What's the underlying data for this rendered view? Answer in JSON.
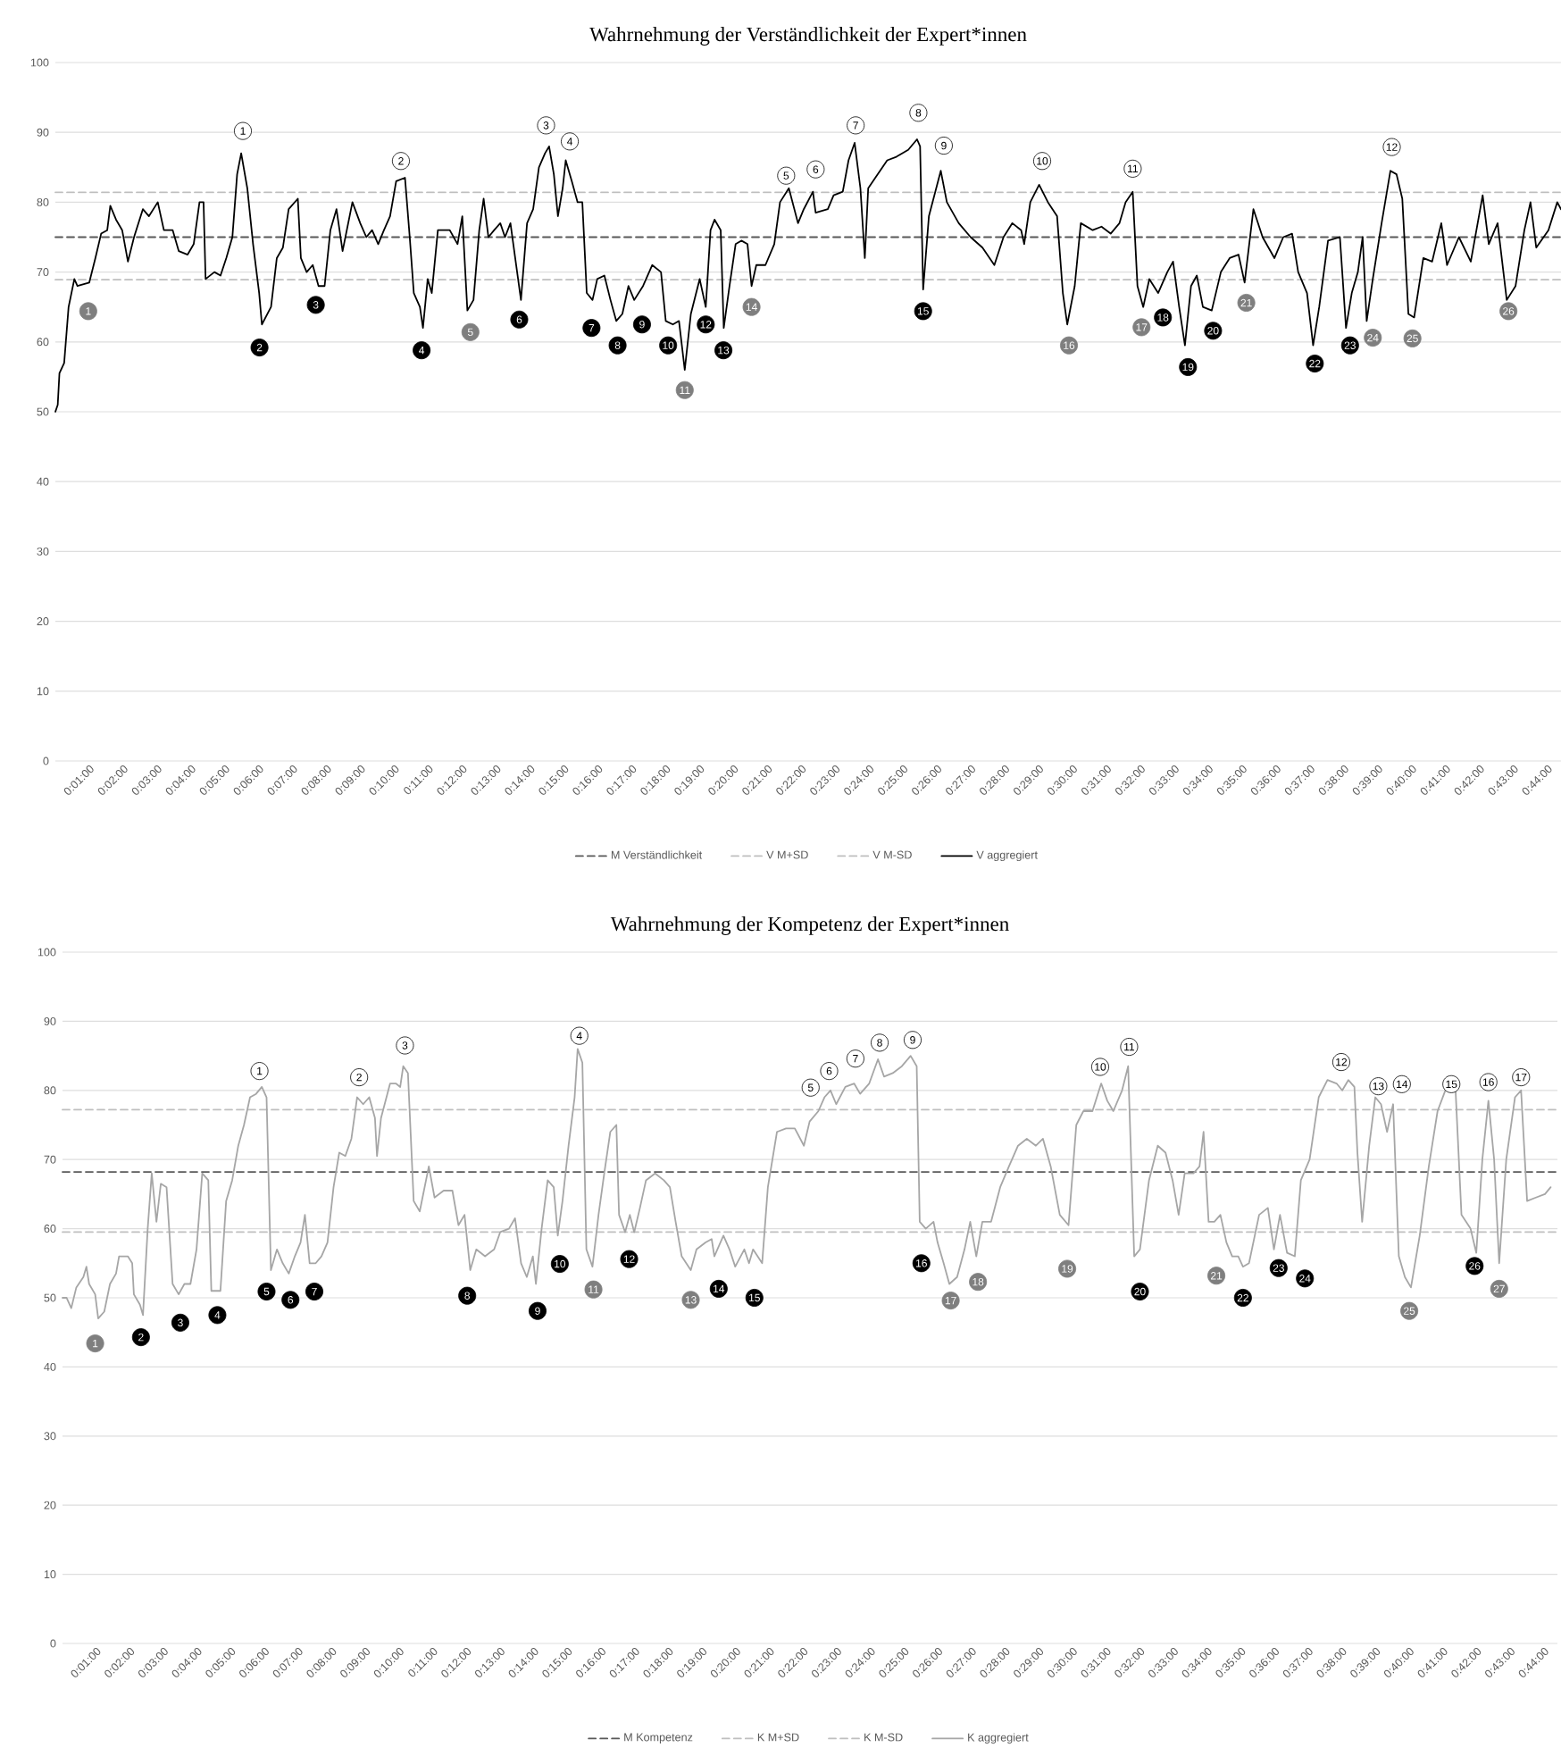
{
  "chart_data": [
    {
      "type": "line",
      "title": "Wahrnehmung der Verständlichkeit der Expert*innen",
      "xlim": [
        0,
        44.4
      ],
      "ylim": [
        0,
        100
      ],
      "yticks": [
        0,
        10,
        20,
        30,
        40,
        50,
        60,
        70,
        80,
        90,
        100
      ],
      "grid": "y",
      "legend": "bottom",
      "marker": "none",
      "xticks": [
        {
          "value": 1,
          "label": "0:01:00"
        },
        {
          "value": 2,
          "label": "0:02:00"
        },
        {
          "value": 3,
          "label": "0:03:00"
        },
        {
          "value": 4,
          "label": "0:04:00"
        },
        {
          "value": 5,
          "label": "0:05:00"
        },
        {
          "value": 6,
          "label": "0:06:00"
        },
        {
          "value": 7,
          "label": "0:07:00"
        },
        {
          "value": 8,
          "label": "0:08:00"
        },
        {
          "value": 9,
          "label": "0:09:00"
        },
        {
          "value": 10,
          "label": "0:10:00"
        },
        {
          "value": 11,
          "label": "0:11:00"
        },
        {
          "value": 12,
          "label": "0:12:00"
        },
        {
          "value": 13,
          "label": "0:13:00"
        },
        {
          "value": 14,
          "label": "0:14:00"
        },
        {
          "value": 15,
          "label": "0:15:00"
        },
        {
          "value": 16,
          "label": "0:16:00"
        },
        {
          "value": 17,
          "label": "0:17:00"
        },
        {
          "value": 18,
          "label": "0:18:00"
        },
        {
          "value": 19,
          "label": "0:19:00"
        },
        {
          "value": 20,
          "label": "0:20:00"
        },
        {
          "value": 21,
          "label": "0:21:00"
        },
        {
          "value": 22,
          "label": "0:22:00"
        },
        {
          "value": 23,
          "label": "0:23:00"
        },
        {
          "value": 24,
          "label": "0:24:00"
        },
        {
          "value": 25,
          "label": "0:25:00"
        },
        {
          "value": 26,
          "label": "0:26:00"
        },
        {
          "value": 27,
          "label": "0:27:00"
        },
        {
          "value": 28,
          "label": "0:28:00"
        },
        {
          "value": 29,
          "label": "0:29:00"
        },
        {
          "value": 30,
          "label": "0:30:00"
        },
        {
          "value": 31,
          "label": "0:31:00"
        },
        {
          "value": 32,
          "label": "0:32:00"
        },
        {
          "value": 33,
          "label": "0:33:00"
        },
        {
          "value": 34,
          "label": "0:34:00"
        },
        {
          "value": 35,
          "label": "0:35:00"
        },
        {
          "value": 36,
          "label": "0:36:00"
        },
        {
          "value": 37,
          "label": "0:37:00"
        },
        {
          "value": 38,
          "label": "0:38:00"
        },
        {
          "value": 39,
          "label": "0:39:00"
        },
        {
          "value": 40,
          "label": "0:40:00"
        },
        {
          "value": 41,
          "label": "0:41:00"
        },
        {
          "value": 42,
          "label": "0:42:00"
        },
        {
          "value": 43,
          "label": "0:43:00"
        },
        {
          "value": 44,
          "label": "0:44:00"
        }
      ],
      "series": [
        {
          "name": "M Verständlichkeit",
          "color": "#595959",
          "line_style": "dashed",
          "x": [
            0,
            44.4
          ],
          "values": [
            75,
            75
          ]
        },
        {
          "name": "V M+SD",
          "color": "#bfbfbf",
          "line_style": "dashed",
          "x": [
            0,
            44.4
          ],
          "values": [
            81.4,
            81.4
          ]
        },
        {
          "name": "V M-SD",
          "color": "#bfbfbf",
          "line_style": "dashed",
          "x": [
            0,
            44.4
          ],
          "values": [
            68.9,
            68.9
          ]
        },
        {
          "name": "V aggregiert",
          "color": "#000000",
          "line_style": "solid",
          "x": [
            0,
            0.07,
            0.12,
            0.26,
            0.39,
            0.56,
            0.65,
            1.0,
            1.18,
            1.35,
            1.53,
            1.62,
            1.79,
            1.97,
            2.14,
            2.32,
            2.58,
            2.76,
            3.02,
            3.2,
            3.46,
            3.64,
            3.9,
            4.08,
            4.25,
            4.37,
            4.43,
            4.69,
            4.87,
            5.04,
            5.22,
            5.36,
            5.48,
            5.66,
            5.83,
            6.01,
            6.09,
            6.36,
            6.53,
            6.71,
            6.88,
            7.15,
            7.24,
            7.41,
            7.59,
            7.76,
            7.94,
            8.11,
            8.29,
            8.47,
            8.76,
            8.99,
            9.17,
            9.34,
            9.52,
            9.69,
            9.87,
            10.05,
            10.31,
            10.45,
            10.57,
            10.75,
            10.84,
            10.98,
            11.1,
            11.28,
            11.63,
            11.86,
            12.0,
            12.15,
            12.33,
            12.5,
            12.63,
            12.77,
            12.94,
            13.12,
            13.26,
            13.42,
            13.56,
            13.73,
            13.91,
            14.09,
            14.26,
            14.44,
            14.56,
            14.7,
            14.82,
            14.96,
            15.05,
            15.23,
            15.4,
            15.54,
            15.67,
            15.84,
            15.98,
            16.19,
            16.37,
            16.54,
            16.72,
            16.9,
            17.07,
            17.33,
            17.6,
            17.86,
            18.0,
            18.21,
            18.39,
            18.56,
            18.74,
            19.0,
            19.18,
            19.32,
            19.44,
            19.62,
            19.71,
            19.88,
            20.06,
            20.23,
            20.41,
            20.53,
            20.67,
            20.94,
            21.2,
            21.37,
            21.63,
            21.9,
            22.07,
            22.34,
            22.42,
            22.78,
            22.95,
            23.22,
            23.39,
            23.57,
            23.74,
            23.87,
            23.97,
            24.18,
            24.53,
            24.8,
            25.15,
            25.41,
            25.5,
            25.59,
            25.76,
            26.11,
            26.29,
            26.64,
            26.99,
            27.34,
            27.69,
            27.96,
            28.22,
            28.48,
            28.57,
            28.75,
            29.01,
            29.27,
            29.54,
            29.71,
            29.84,
            30.06,
            30.24,
            30.59,
            30.85,
            31.12,
            31.38,
            31.56,
            31.77,
            31.91,
            32.08,
            32.26,
            32.52,
            32.79,
            32.96,
            33.14,
            33.31,
            33.49,
            33.66,
            33.84,
            34.1,
            34.37,
            34.63,
            34.89,
            35.07,
            35.33,
            35.6,
            35.95,
            36.21,
            36.47,
            36.65,
            36.91,
            37.09,
            37.27,
            37.53,
            37.88,
            38.06,
            38.23,
            38.41,
            38.55,
            38.67,
            38.85,
            39.11,
            39.37,
            39.55,
            39.72,
            39.9,
            40.07,
            40.34,
            40.6,
            40.87,
            41.04,
            41.39,
            41.74,
            42.09,
            42.27,
            42.53,
            42.8,
            43.06,
            43.32,
            43.5,
            43.67,
            44.03,
            44.29,
            44.4
          ],
          "values": [
            50,
            51,
            55.5,
            57,
            65,
            69,
            68,
            68.5,
            72,
            75.5,
            76,
            79.5,
            77.5,
            76,
            71.5,
            75,
            79,
            78,
            80,
            76,
            76,
            73,
            72.5,
            74,
            80,
            80,
            69,
            70,
            69.5,
            72,
            75,
            84,
            87,
            82,
            74,
            67,
            62.5,
            65,
            72,
            73.5,
            79,
            80.5,
            72,
            70,
            71,
            68,
            68,
            76,
            79,
            73,
            80,
            77,
            75,
            76,
            74,
            76,
            78,
            83,
            83.5,
            75,
            67,
            65,
            62,
            69,
            67,
            76,
            76,
            74,
            78,
            64.5,
            66,
            76,
            80.5,
            75,
            76,
            77,
            75,
            77,
            72,
            66,
            77,
            79,
            85,
            87,
            88,
            84,
            78,
            82,
            86,
            83,
            80,
            80,
            67,
            66,
            69,
            69.5,
            66,
            63,
            64,
            68,
            66,
            68,
            71,
            70,
            63,
            62.5,
            63,
            56,
            64,
            69,
            65,
            76,
            77.5,
            76,
            62,
            68,
            74,
            74.5,
            74,
            68,
            71,
            71,
            74,
            80,
            82,
            77,
            79,
            81.5,
            78.5,
            79,
            81,
            81.5,
            86,
            88.5,
            82,
            72,
            82,
            83.5,
            86,
            86.5,
            87.5,
            89,
            88,
            67.5,
            78,
            84.5,
            80,
            77,
            75,
            73.5,
            71,
            75,
            77,
            76,
            74,
            80,
            82.5,
            80,
            78,
            67,
            62.5,
            68,
            77,
            76,
            76.5,
            75.5,
            77,
            80,
            81.5,
            68,
            65,
            69,
            67,
            70,
            71.5,
            65,
            59.5,
            68,
            69.5,
            65,
            64.5,
            70,
            72,
            72.5,
            68.5,
            79,
            75,
            72,
            75,
            75.5,
            70,
            67,
            59.5,
            65,
            74.5,
            75,
            62,
            67,
            70,
            75,
            63,
            69,
            77,
            84.5,
            84,
            80.5,
            64,
            63.5,
            72,
            71.5,
            77,
            71,
            75,
            71.5,
            81,
            74,
            77,
            66,
            68,
            76,
            80,
            73.5,
            76,
            80,
            79
          ]
        },
        {
          "type": "scatter",
          "marker": "circle",
          "color": "#ffffff",
          "x": [
            5.53,
            10.19,
            14.47,
            15.17,
            21.55,
            22.42,
            23.6,
            25.45,
            26.2,
            29.1,
            31.77,
            39.41
          ],
          "values": [
            90.2,
            85.9,
            91.0,
            88.7,
            83.8,
            84.7,
            91.0,
            92.8,
            88.1,
            85.9,
            84.8,
            87.9
          ]
        },
        {
          "type": "scatter",
          "marker": "circle",
          "color": "#000000",
          "x": [
            6.02,
            7.68,
            10.8,
            13.68,
            15.81,
            16.58,
            17.3,
            18.07,
            19.18,
            19.7,
            25.59,
            32.66,
            33.4,
            34.14,
            37.14,
            38.18
          ],
          "values": [
            59.2,
            65.3,
            58.8,
            63.2,
            62.0,
            59.5,
            62.5,
            59.5,
            62.5,
            58.8,
            64.4,
            63.5,
            56.4,
            61.6,
            56.9,
            59.5
          ]
        },
        {
          "type": "scatter",
          "marker": "circle",
          "color": "#7f7f7f",
          "x": [
            0.97,
            12.24,
            18.56,
            20.53,
            29.89,
            32.03,
            35.12,
            38.85,
            40.02,
            42.85
          ],
          "values": [
            64.4,
            61.4,
            53.1,
            65.0,
            59.5,
            62.1,
            65.6,
            60.6,
            60.5,
            64.4
          ]
        }
      ],
      "annotations": [
        {
          "text": "1",
          "x": 5.53,
          "y": 90.2
        },
        {
          "text": "2",
          "x": 10.19,
          "y": 85.9
        },
        {
          "text": "3",
          "x": 14.47,
          "y": 91.0
        },
        {
          "text": "4",
          "x": 15.17,
          "y": 88.7
        },
        {
          "text": "5",
          "x": 21.55,
          "y": 83.8
        },
        {
          "text": "6",
          "x": 22.42,
          "y": 84.7
        },
        {
          "text": "7",
          "x": 23.6,
          "y": 91.0
        },
        {
          "text": "8",
          "x": 25.45,
          "y": 92.8
        },
        {
          "text": "9",
          "x": 26.2,
          "y": 88.1
        },
        {
          "text": "10",
          "x": 29.1,
          "y": 85.9
        },
        {
          "text": "11",
          "x": 31.77,
          "y": 84.8
        },
        {
          "text": "12",
          "x": 39.41,
          "y": 87.9
        },
        {
          "text": "2",
          "x": 6.02,
          "y": 59.2
        },
        {
          "text": "3",
          "x": 7.68,
          "y": 65.3
        },
        {
          "text": "4",
          "x": 10.8,
          "y": 58.8
        },
        {
          "text": "6",
          "x": 13.68,
          "y": 63.2
        },
        {
          "text": "7",
          "x": 15.81,
          "y": 62.0
        },
        {
          "text": "8",
          "x": 16.58,
          "y": 59.5
        },
        {
          "text": "9",
          "x": 17.3,
          "y": 62.5
        },
        {
          "text": "10",
          "x": 18.07,
          "y": 59.5
        },
        {
          "text": "12",
          "x": 19.18,
          "y": 62.5
        },
        {
          "text": "13",
          "x": 19.7,
          "y": 58.8
        },
        {
          "text": "15",
          "x": 25.59,
          "y": 64.4
        },
        {
          "text": "18",
          "x": 32.66,
          "y": 63.5
        },
        {
          "text": "19",
          "x": 33.4,
          "y": 56.4
        },
        {
          "text": "20",
          "x": 34.14,
          "y": 61.6
        },
        {
          "text": "22",
          "x": 37.14,
          "y": 56.9
        },
        {
          "text": "23",
          "x": 38.18,
          "y": 59.5
        },
        {
          "text": "1",
          "x": 0.97,
          "y": 64.4
        },
        {
          "text": "5",
          "x": 12.24,
          "y": 61.4
        },
        {
          "text": "11",
          "x": 18.56,
          "y": 53.1
        },
        {
          "text": "14",
          "x": 20.53,
          "y": 65.0
        },
        {
          "text": "16",
          "x": 29.89,
          "y": 59.5
        },
        {
          "text": "17",
          "x": 32.03,
          "y": 62.1
        },
        {
          "text": "21",
          "x": 35.12,
          "y": 65.6
        },
        {
          "text": "24",
          "x": 38.85,
          "y": 60.6
        },
        {
          "text": "25",
          "x": 40.02,
          "y": 60.5
        },
        {
          "text": "26",
          "x": 42.85,
          "y": 64.4
        }
      ]
    },
    {
      "type": "line",
      "title": "Wahrnehmung der Kompetenz der Expert*innen",
      "xlim": [
        0,
        44.4
      ],
      "ylim": [
        0,
        100
      ],
      "yticks": [
        0,
        10,
        20,
        30,
        40,
        50,
        60,
        70,
        80,
        90,
        100
      ],
      "grid": "y",
      "legend": "bottom",
      "marker": "none",
      "xticks": [
        {
          "value": 1,
          "label": "0:01:00"
        },
        {
          "value": 2,
          "label": "0:02:00"
        },
        {
          "value": 3,
          "label": "0:03:00"
        },
        {
          "value": 4,
          "label": "0:04:00"
        },
        {
          "value": 5,
          "label": "0:05:00"
        },
        {
          "value": 6,
          "label": "0:06:00"
        },
        {
          "value": 7,
          "label": "0:07:00"
        },
        {
          "value": 8,
          "label": "0:08:00"
        },
        {
          "value": 9,
          "label": "0:09:00"
        },
        {
          "value": 10,
          "label": "0:10:00"
        },
        {
          "value": 11,
          "label": "0:11:00"
        },
        {
          "value": 12,
          "label": "0:12:00"
        },
        {
          "value": 13,
          "label": "0:13:00"
        },
        {
          "value": 14,
          "label": "0:14:00"
        },
        {
          "value": 15,
          "label": "0:15:00"
        },
        {
          "value": 16,
          "label": "0:16:00"
        },
        {
          "value": 17,
          "label": "0:17:00"
        },
        {
          "value": 18,
          "label": "0:18:00"
        },
        {
          "value": 19,
          "label": "0:19:00"
        },
        {
          "value": 20,
          "label": "0:20:00"
        },
        {
          "value": 21,
          "label": "0:21:00"
        },
        {
          "value": 22,
          "label": "0:22:00"
        },
        {
          "value": 23,
          "label": "0:23:00"
        },
        {
          "value": 24,
          "label": "0:24:00"
        },
        {
          "value": 25,
          "label": "0:25:00"
        },
        {
          "value": 26,
          "label": "0:26:00"
        },
        {
          "value": 27,
          "label": "0:27:00"
        },
        {
          "value": 28,
          "label": "0:28:00"
        },
        {
          "value": 29,
          "label": "0:29:00"
        },
        {
          "value": 30,
          "label": "0:30:00"
        },
        {
          "value": 31,
          "label": "0:31:00"
        },
        {
          "value": 32,
          "label": "0:32:00"
        },
        {
          "value": 33,
          "label": "0:33:00"
        },
        {
          "value": 34,
          "label": "0:34:00"
        },
        {
          "value": 35,
          "label": "0:35:00"
        },
        {
          "value": 36,
          "label": "0:36:00"
        },
        {
          "value": 37,
          "label": "0:37:00"
        },
        {
          "value": 38,
          "label": "0:38:00"
        },
        {
          "value": 39,
          "label": "0:39:00"
        },
        {
          "value": 40,
          "label": "0:40:00"
        },
        {
          "value": 41,
          "label": "0:41:00"
        },
        {
          "value": 42,
          "label": "0:42:00"
        },
        {
          "value": 43,
          "label": "0:43:00"
        },
        {
          "value": 44,
          "label": "0:44:00"
        }
      ],
      "series": [
        {
          "name": "M Kompetenz",
          "color": "#595959",
          "line_style": "dashed",
          "x": [
            0,
            44.4
          ],
          "values": [
            68.2,
            68.2
          ]
        },
        {
          "name": "K M+SD",
          "color": "#bfbfbf",
          "line_style": "dashed",
          "x": [
            0,
            44.4
          ],
          "values": [
            77.2,
            77.2
          ]
        },
        {
          "name": "K M-SD",
          "color": "#bfbfbf",
          "line_style": "dashed",
          "x": [
            0,
            44.4
          ],
          "values": [
            59.5,
            59.5
          ]
        },
        {
          "name": "K aggregiert",
          "color": "#a6a6a6",
          "line_style": "solid",
          "x": [
            0,
            0.12,
            0.26,
            0.41,
            0.62,
            0.71,
            0.79,
            0.97,
            1.06,
            1.24,
            1.41,
            1.59,
            1.68,
            1.94,
            2.07,
            2.12,
            2.3,
            2.39,
            2.53,
            2.65,
            2.79,
            2.92,
            3.09,
            3.27,
            3.45,
            3.62,
            3.8,
            3.98,
            4.15,
            4.33,
            4.42,
            4.69,
            4.86,
            5.04,
            5.22,
            5.39,
            5.57,
            5.75,
            5.92,
            6.06,
            6.19,
            6.37,
            6.54,
            6.72,
            6.9,
            7.07,
            7.2,
            7.34,
            7.52,
            7.69,
            7.87,
            8.05,
            8.22,
            8.4,
            8.58,
            8.75,
            8.93,
            9.11,
            9.28,
            9.34,
            9.46,
            9.73,
            9.9,
            10.03,
            10.12,
            10.26,
            10.43,
            10.61,
            10.88,
            11.05,
            11.32,
            11.58,
            11.76,
            11.94,
            12.11,
            12.29,
            12.55,
            12.82,
            13.0,
            13.26,
            13.44,
            13.62,
            13.79,
            13.97,
            14.06,
            14.23,
            14.41,
            14.59,
            14.71,
            14.85,
            15.03,
            15.21,
            15.3,
            15.44,
            15.56,
            15.74,
            15.92,
            16.09,
            16.27,
            16.45,
            16.53,
            16.71,
            16.85,
            16.98,
            17.15,
            17.33,
            17.6,
            17.86,
            18.04,
            18.21,
            18.39,
            18.66,
            18.83,
            19.1,
            19.28,
            19.36,
            19.63,
            19.81,
            19.98,
            20.25,
            20.39,
            20.51,
            20.78,
            20.95,
            21.22,
            21.49,
            21.75,
            22.02,
            22.19,
            22.45,
            22.63,
            22.81,
            22.98,
            23.25,
            23.51,
            23.69,
            23.96,
            24.22,
            24.4,
            24.66,
            24.93,
            25.19,
            25.37,
            25.46,
            25.64,
            25.87,
            25.99,
            26.17,
            26.34,
            26.57,
            26.79,
            26.96,
            27.14,
            27.32,
            27.58,
            27.85,
            28.11,
            28.38,
            28.64,
            28.91,
            29.12,
            29.35,
            29.62,
            29.88,
            30.11,
            30.32,
            30.59,
            30.85,
            31.03,
            31.21,
            31.47,
            31.65,
            31.83,
            32.0,
            32.27,
            32.53,
            32.76,
            32.97,
            33.15,
            33.33,
            33.59,
            33.77,
            33.89,
            34.04,
            34.21,
            34.39,
            34.57,
            34.74,
            34.92,
            35.06,
            35.24,
            35.54,
            35.8,
            35.98,
            36.16,
            36.37,
            36.6,
            36.78,
            37.04,
            37.31,
            37.57,
            37.84,
            38.01,
            38.19,
            38.37,
            38.46,
            38.6,
            38.81,
            38.99,
            39.16,
            39.34,
            39.52,
            39.69,
            39.87,
            40.05,
            40.31,
            40.58,
            40.84,
            41.11,
            41.37,
            41.55,
            41.82,
            41.99,
            42.17,
            42.35,
            42.52,
            42.67,
            42.88,
            43.14,
            43.32,
            43.5,
            43.76,
            44.03,
            44.2
          ],
          "values": [
            50,
            50,
            48.5,
            51.5,
            53,
            54.5,
            52,
            50.5,
            47,
            48,
            52,
            53.5,
            56,
            56,
            55,
            50.5,
            49,
            47.5,
            60,
            68,
            61,
            66.5,
            66,
            52,
            50.5,
            52,
            52,
            57,
            68,
            67,
            51,
            51,
            64,
            67,
            72,
            75,
            79,
            79.5,
            80.5,
            79,
            54,
            57,
            55,
            53.5,
            56,
            58,
            62,
            55,
            55,
            56,
            58,
            66,
            71,
            70.5,
            73,
            79,
            78,
            79,
            76,
            70.5,
            76,
            81,
            81,
            80.5,
            83.5,
            82.5,
            64,
            62.5,
            69,
            64.5,
            65.5,
            65.5,
            60.5,
            62,
            54,
            57,
            56,
            57,
            59.5,
            60,
            61.5,
            55,
            53,
            56,
            52,
            60,
            67,
            66,
            59,
            64,
            72,
            79,
            86,
            84,
            57,
            54.5,
            62,
            68,
            74,
            75,
            62,
            59.5,
            62,
            59.5,
            63,
            67,
            68,
            67,
            66,
            61,
            56,
            54,
            57,
            58,
            58.5,
            56,
            59,
            57,
            54.5,
            57,
            55,
            57,
            55,
            66,
            74,
            74.5,
            74.5,
            72,
            75.5,
            77,
            79,
            80,
            78,
            80.5,
            81,
            79.5,
            81,
            84.5,
            82,
            82.5,
            83.5,
            85,
            83.5,
            61,
            60,
            61,
            58,
            55,
            52,
            53,
            57,
            61,
            56,
            61,
            61,
            66,
            69,
            72,
            73,
            72,
            73,
            69,
            62,
            60.5,
            75,
            77,
            77,
            81,
            78.5,
            77,
            80,
            83.5,
            56,
            57,
            67,
            72,
            71,
            67,
            62,
            68,
            68,
            69,
            74,
            61,
            61,
            62,
            58,
            56,
            56,
            54.5,
            55,
            62,
            63,
            57,
            62,
            56.5,
            56,
            67,
            70,
            79,
            81.5,
            81,
            80,
            81.5,
            80.5,
            71,
            61,
            72,
            79,
            78,
            74,
            78,
            56,
            53,
            51.5,
            59,
            69,
            77,
            80.5,
            80.5,
            62,
            60,
            56.5,
            70,
            78.5,
            70,
            55,
            70,
            79,
            80,
            64,
            64.5,
            65,
            66
          ]
        },
        {
          "type": "scatter",
          "marker": "circle",
          "color": "#ffffff",
          "x": [
            5.85,
            8.81,
            10.17,
            15.35,
            22.22,
            22.77,
            23.55,
            24.27,
            25.25,
            30.82,
            31.68,
            37.98,
            39.08,
            39.78,
            41.25,
            42.35,
            43.32
          ],
          "values": [
            82.8,
            81.9,
            86.5,
            87.9,
            80.4,
            82.8,
            84.6,
            86.9,
            87.3,
            83.4,
            86.3,
            84.1,
            80.6,
            80.9,
            80.9,
            81.2,
            81.9
          ]
        },
        {
          "type": "scatter",
          "marker": "circle",
          "color": "#000000",
          "x": [
            2.33,
            3.5,
            4.6,
            6.06,
            6.77,
            7.48,
            12.02,
            14.11,
            14.77,
            16.83,
            19.49,
            20.55,
            25.51,
            32.0,
            35.06,
            36.12,
            36.9,
            41.94
          ],
          "values": [
            44.3,
            46.4,
            47.5,
            50.9,
            49.7,
            50.9,
            50.3,
            48.1,
            54.9,
            55.6,
            51.3,
            50.0,
            55.0,
            50.9,
            50.0,
            54.3,
            52.8,
            54.6
          ]
        },
        {
          "type": "scatter",
          "marker": "circle",
          "color": "#7f7f7f",
          "x": [
            0.97,
            15.77,
            18.66,
            26.38,
            27.19,
            29.84,
            34.27,
            40.0,
            42.67
          ],
          "values": [
            43.4,
            51.2,
            49.7,
            49.6,
            52.3,
            54.2,
            53.2,
            48.1,
            51.3
          ]
        }
      ],
      "annotations": [
        {
          "text": "1",
          "x": 5.85,
          "y": 82.8
        },
        {
          "text": "2",
          "x": 8.81,
          "y": 81.9
        },
        {
          "text": "3",
          "x": 10.17,
          "y": 86.5
        },
        {
          "text": "4",
          "x": 15.35,
          "y": 87.9
        },
        {
          "text": "5",
          "x": 22.22,
          "y": 80.4
        },
        {
          "text": "6",
          "x": 22.77,
          "y": 82.8
        },
        {
          "text": "7",
          "x": 23.55,
          "y": 84.6
        },
        {
          "text": "8",
          "x": 24.27,
          "y": 86.9
        },
        {
          "text": "9",
          "x": 25.25,
          "y": 87.3
        },
        {
          "text": "10",
          "x": 30.82,
          "y": 83.4
        },
        {
          "text": "11",
          "x": 31.68,
          "y": 86.3
        },
        {
          "text": "12",
          "x": 37.98,
          "y": 84.1
        },
        {
          "text": "13",
          "x": 39.08,
          "y": 80.6
        },
        {
          "text": "14",
          "x": 39.78,
          "y": 80.9
        },
        {
          "text": "15",
          "x": 41.25,
          "y": 80.9
        },
        {
          "text": "16",
          "x": 42.35,
          "y": 81.2
        },
        {
          "text": "17",
          "x": 43.32,
          "y": 81.9
        },
        {
          "text": "2",
          "x": 2.33,
          "y": 44.3
        },
        {
          "text": "3",
          "x": 3.5,
          "y": 46.4
        },
        {
          "text": "4",
          "x": 4.6,
          "y": 47.5
        },
        {
          "text": "5",
          "x": 6.06,
          "y": 50.9
        },
        {
          "text": "6",
          "x": 6.77,
          "y": 49.7
        },
        {
          "text": "7",
          "x": 7.48,
          "y": 50.9
        },
        {
          "text": "8",
          "x": 12.02,
          "y": 50.3
        },
        {
          "text": "9",
          "x": 14.11,
          "y": 48.1
        },
        {
          "text": "10",
          "x": 14.77,
          "y": 54.9
        },
        {
          "text": "12",
          "x": 16.83,
          "y": 55.6
        },
        {
          "text": "14",
          "x": 19.49,
          "y": 51.3
        },
        {
          "text": "15",
          "x": 20.55,
          "y": 50.0
        },
        {
          "text": "16",
          "x": 25.51,
          "y": 55.0
        },
        {
          "text": "20",
          "x": 32.0,
          "y": 50.9
        },
        {
          "text": "22",
          "x": 35.06,
          "y": 50.0
        },
        {
          "text": "23",
          "x": 36.12,
          "y": 54.3
        },
        {
          "text": "24",
          "x": 36.9,
          "y": 52.8
        },
        {
          "text": "26",
          "x": 41.94,
          "y": 54.6
        },
        {
          "text": "1",
          "x": 0.97,
          "y": 43.4
        },
        {
          "text": "11",
          "x": 15.77,
          "y": 51.2
        },
        {
          "text": "13",
          "x": 18.66,
          "y": 49.7
        },
        {
          "text": "17",
          "x": 26.38,
          "y": 49.6
        },
        {
          "text": "18",
          "x": 27.19,
          "y": 52.3
        },
        {
          "text": "19",
          "x": 29.84,
          "y": 54.2
        },
        {
          "text": "21",
          "x": 34.27,
          "y": 53.2
        },
        {
          "text": "25",
          "x": 40.0,
          "y": 48.1
        },
        {
          "text": "27",
          "x": 42.67,
          "y": 51.3
        }
      ]
    }
  ]
}
